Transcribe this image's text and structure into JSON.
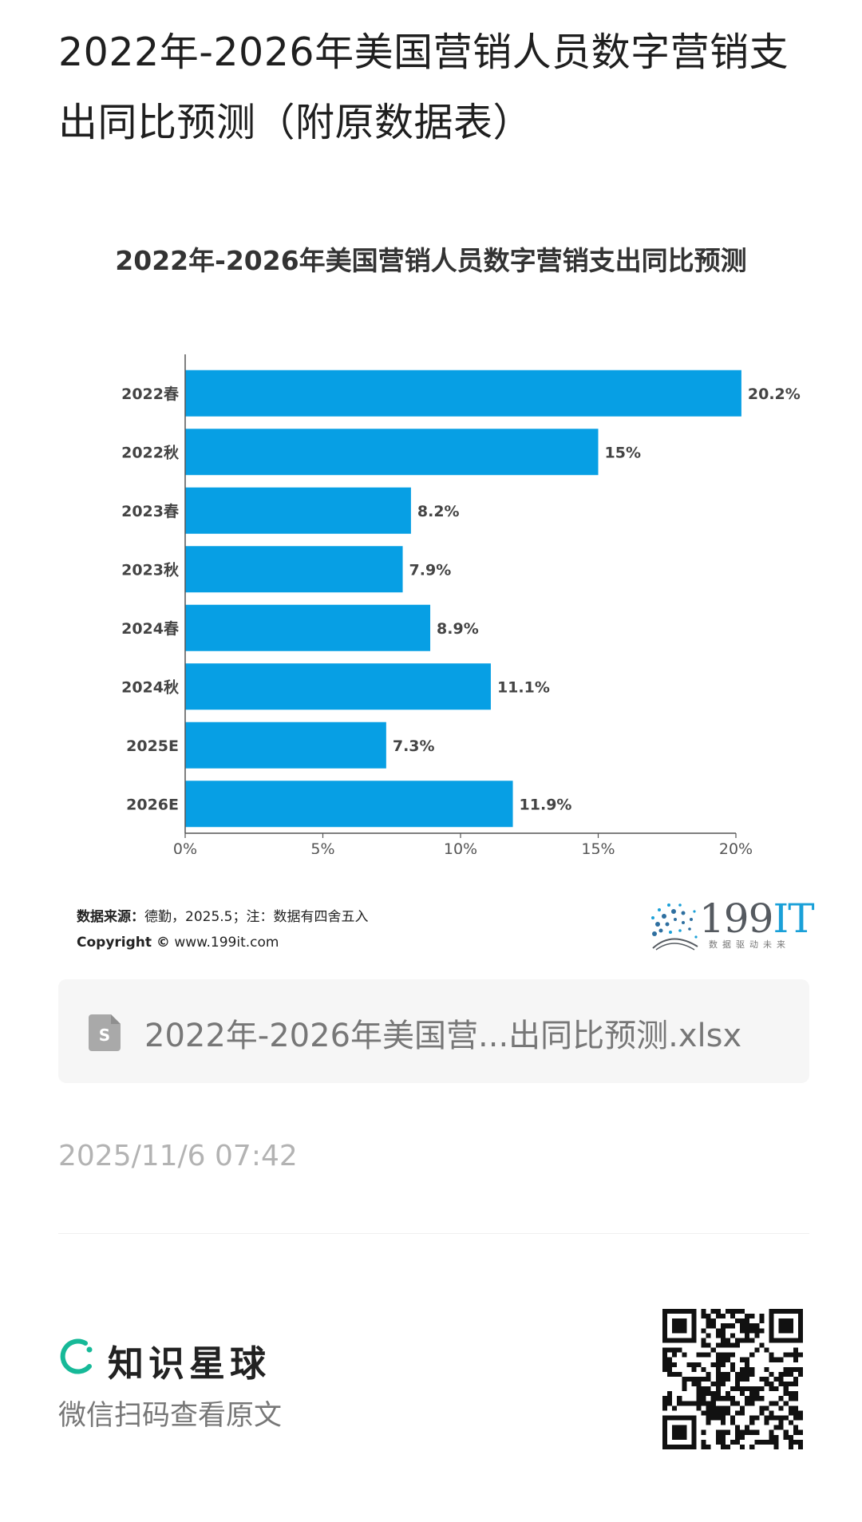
{
  "page": {
    "title": "2022年-2026年美国营销人员数字营销支出同比预测（附原数据表）"
  },
  "chart_data": {
    "type": "bar",
    "orientation": "horizontal",
    "title": "2022年-2026年美国营销人员数字营销支出同比预测",
    "categories": [
      "2022春",
      "2022秋",
      "2023春",
      "2023秋",
      "2024春",
      "2024秋",
      "2025E",
      "2026E"
    ],
    "values": [
      20.2,
      15,
      8.2,
      7.9,
      8.9,
      11.1,
      7.3,
      11.9
    ],
    "value_labels": [
      "20.2%",
      "15%",
      "8.2%",
      "7.9%",
      "8.9%",
      "11.1%",
      "7.3%",
      "11.9%"
    ],
    "xlim": [
      0,
      20
    ],
    "x_ticks": [
      "0%",
      "5%",
      "10%",
      "15%",
      "20%"
    ],
    "x_tick_values": [
      0,
      5,
      10,
      15,
      20
    ],
    "bar_color": "#079fe4",
    "grid": false,
    "legend": "none"
  },
  "source": {
    "label": "数据来源：",
    "text": "德勤，2025.5；注：数据有四舍五入",
    "copyright_label": "Copyright ©",
    "copyright_site": "www.199it.com"
  },
  "logo": {
    "number": "199",
    "suffix": "IT",
    "tagline": "数据驱动未来",
    "accent_color": "#1aa0d8"
  },
  "attachment": {
    "icon": "spreadsheet-file-icon",
    "file_name": "2022年-2026年美国营...出同比预测.xlsx"
  },
  "meta": {
    "timestamp": "2025/11/6 07:42"
  },
  "footer": {
    "brand_icon": "zhishi-planet-logo-icon",
    "brand_name": "知识星球",
    "brand_color": "#16b998",
    "scan_hint": "微信扫码查看原文",
    "qr_icon": "qr-code-icon"
  }
}
